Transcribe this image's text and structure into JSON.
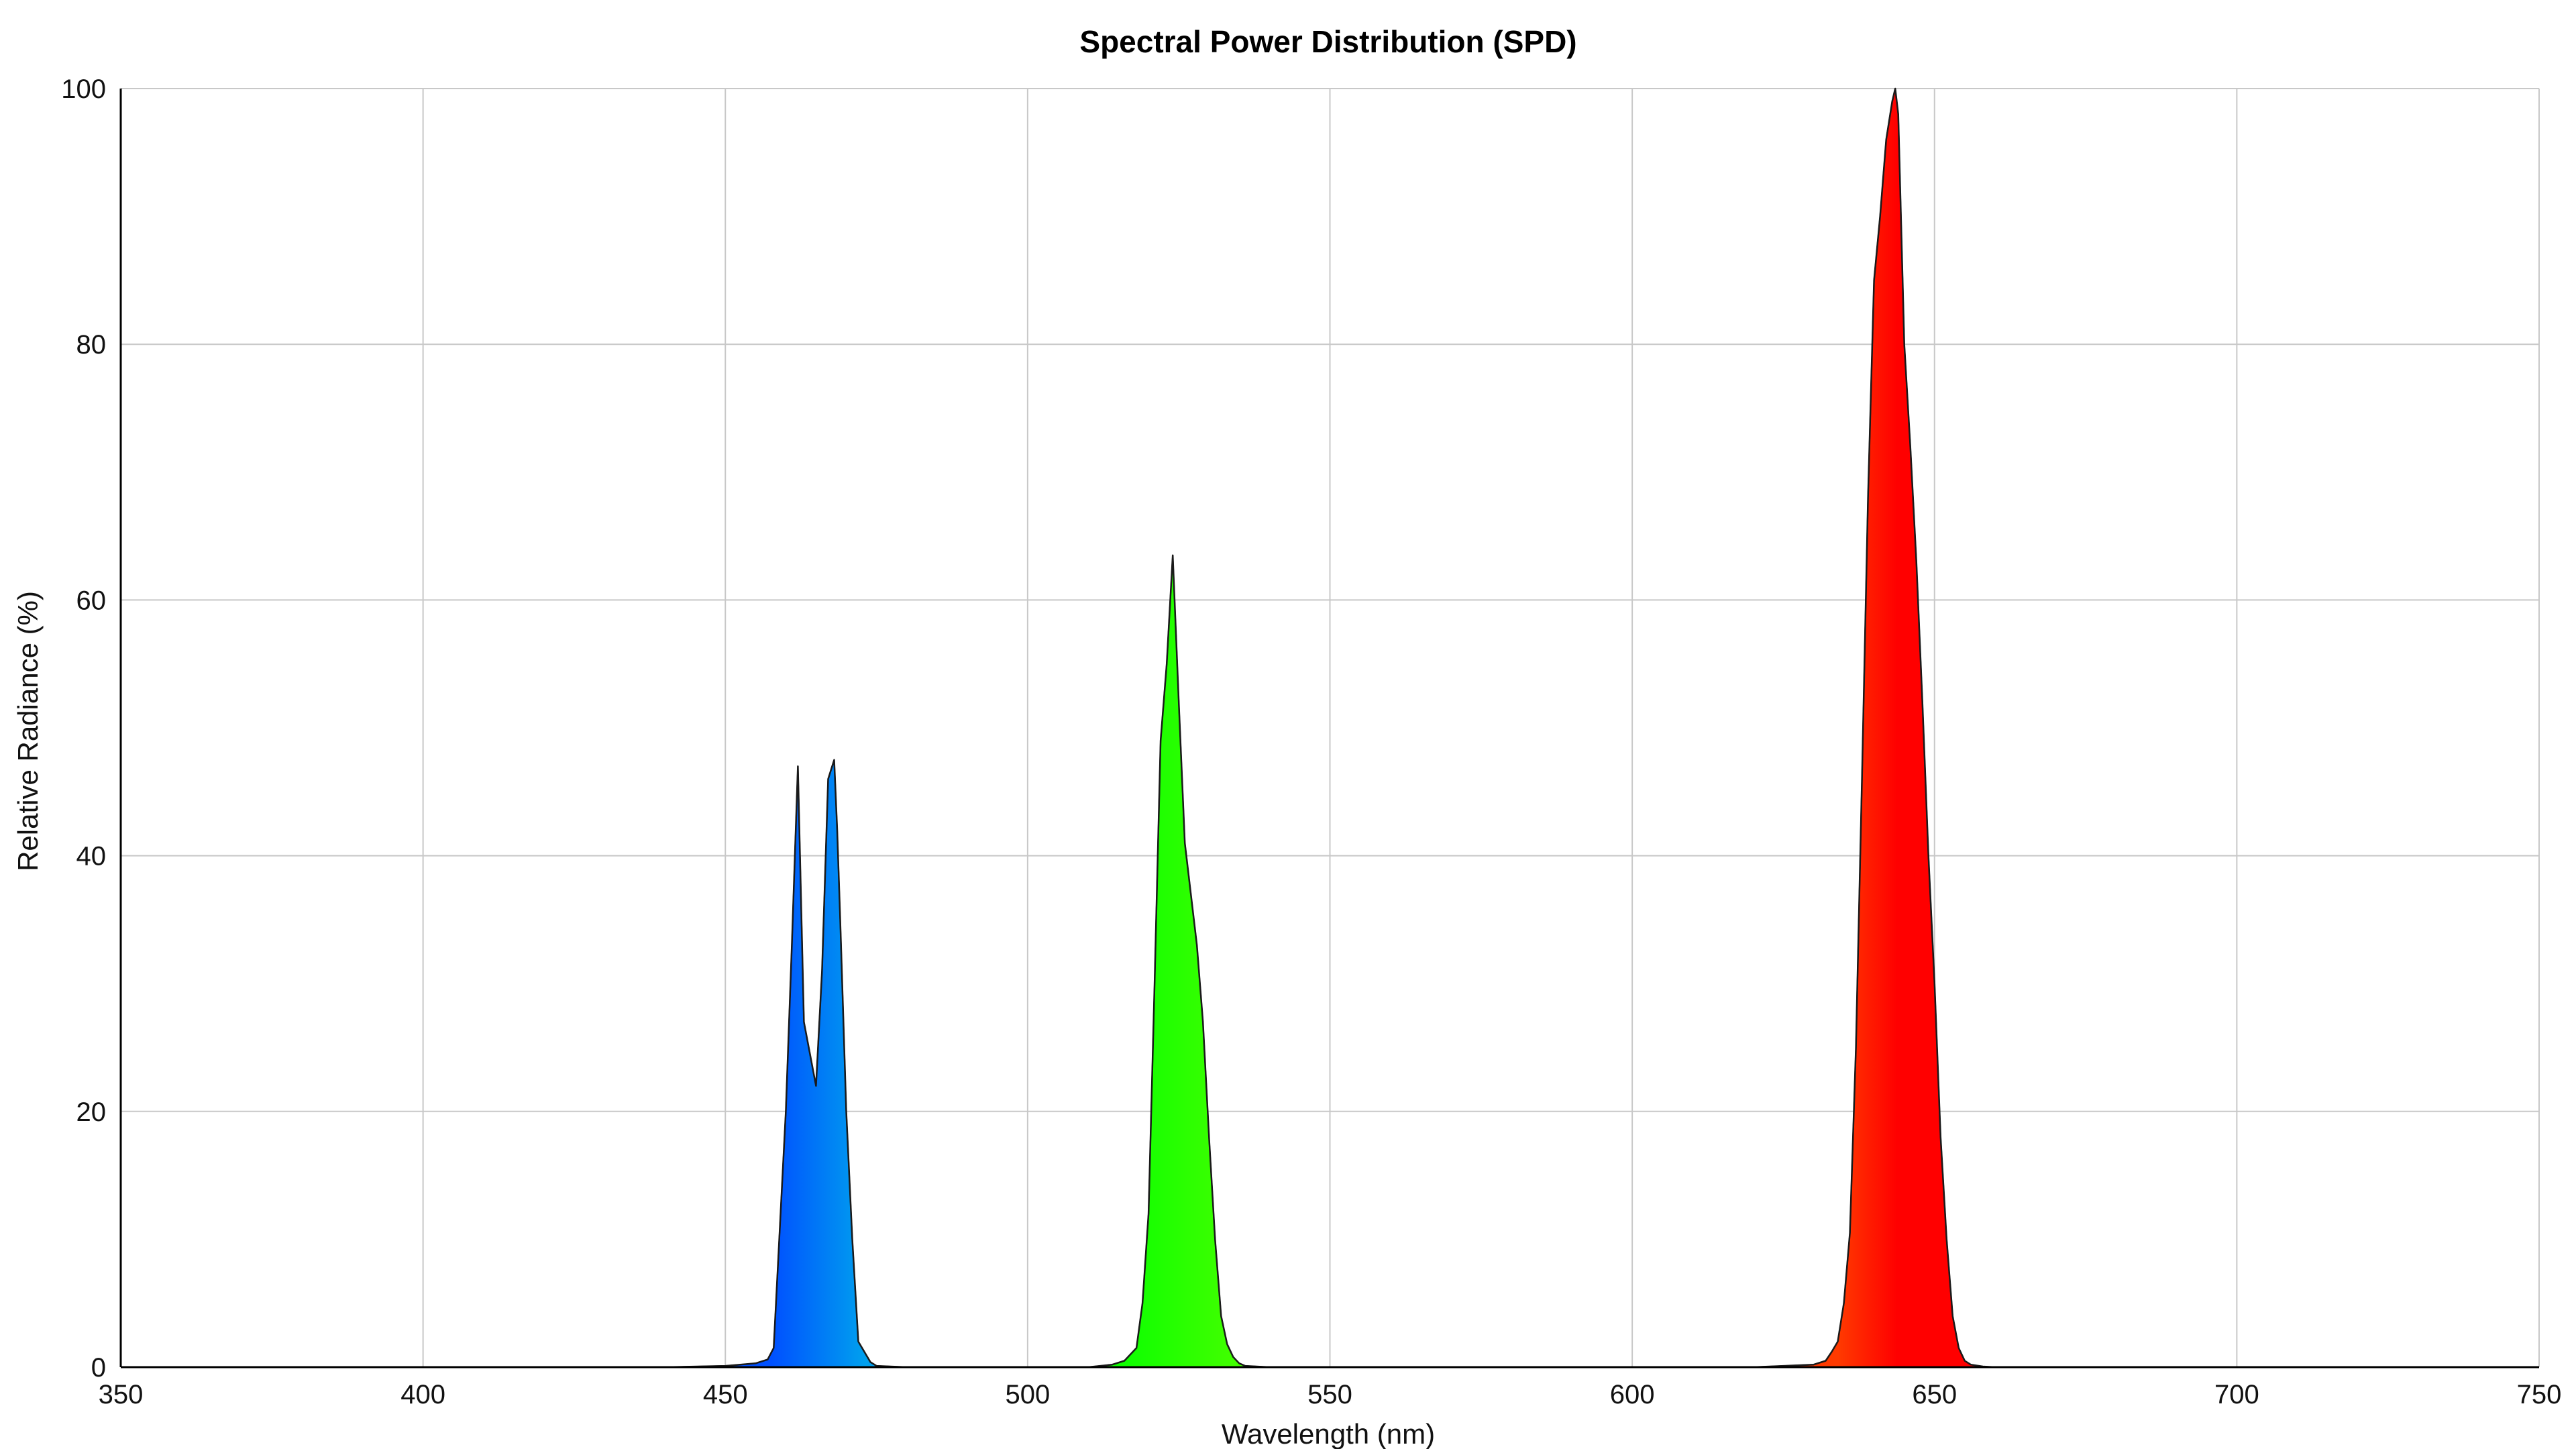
{
  "chart_data": {
    "type": "area",
    "title": "Spectral Power Distribution (SPD)",
    "xlabel": "Wavelength (nm)",
    "ylabel": "Relative Radiance (%)",
    "xlim": [
      350,
      750
    ],
    "ylim": [
      0,
      100
    ],
    "x_ticks": [
      350,
      400,
      450,
      500,
      550,
      600,
      650,
      700,
      750
    ],
    "y_ticks": [
      0,
      20,
      40,
      60,
      80,
      100
    ],
    "grid": true,
    "legend": "none",
    "colors": {
      "blue_start": "#0050ff",
      "blue_end": "#00a0ee",
      "green_start": "#10ff00",
      "green_end": "#44ff00",
      "red_start": "#ff3a00",
      "red_end": "#ff0000",
      "outline": "#1a1a1a",
      "grid": "#c8c8c8"
    },
    "series": [
      {
        "x": [
          380,
          400,
          420,
          440,
          450,
          455,
          457,
          458,
          460,
          461,
          462,
          463,
          464,
          465,
          466,
          467,
          468,
          468.5,
          469,
          470,
          471,
          472,
          473,
          474,
          475,
          480,
          490,
          500,
          510,
          514,
          516,
          518,
          519,
          520,
          521,
          522,
          523,
          524,
          525,
          526,
          527,
          528,
          529,
          530,
          531,
          532,
          533,
          534,
          535,
          536,
          540,
          550,
          560,
          580,
          600,
          620,
          630,
          632,
          633,
          634,
          635,
          636,
          637,
          638,
          639,
          640,
          641,
          642,
          643,
          643.5,
          644,
          645,
          646,
          647,
          648,
          649,
          650,
          651,
          652,
          653,
          654,
          655,
          656,
          658,
          660,
          680,
          700,
          750
        ],
        "y": [
          0,
          0,
          0,
          0,
          0.1,
          0.3,
          0.6,
          1.5,
          20,
          33,
          47,
          27,
          24.5,
          22,
          31,
          46,
          47.5,
          42,
          35,
          20,
          10,
          2,
          1.2,
          0.4,
          0.1,
          0,
          0,
          0,
          0,
          0.2,
          0.5,
          1.5,
          5,
          12,
          30,
          49,
          55,
          63.5,
          52,
          41,
          37,
          33,
          27,
          18,
          10,
          4,
          1.8,
          0.8,
          0.3,
          0.1,
          0,
          0,
          0,
          0,
          0,
          0,
          0.2,
          0.5,
          1.2,
          2,
          5,
          10.5,
          25,
          46,
          68,
          85,
          90,
          96,
          99,
          100,
          98,
          80,
          72,
          63,
          52,
          40,
          30,
          18,
          10,
          4,
          1.5,
          0.5,
          0.2,
          0.05,
          0,
          0,
          0,
          0
        ]
      }
    ]
  }
}
